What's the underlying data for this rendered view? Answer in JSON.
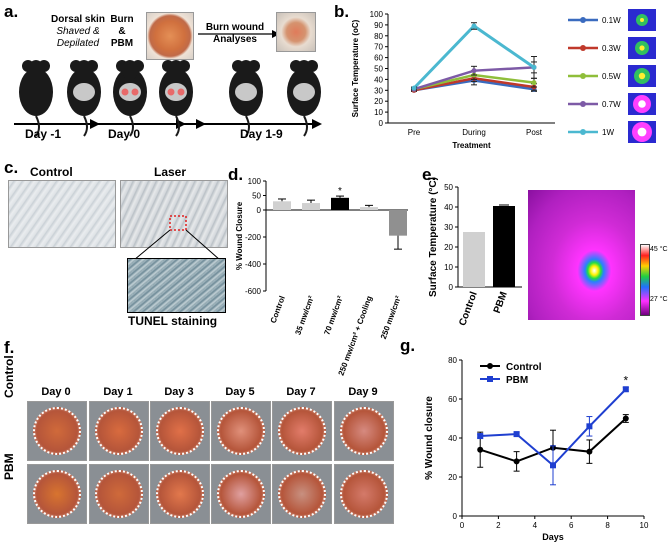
{
  "panels": {
    "a": {
      "label": "a.",
      "step1_title": "Dorsal skin",
      "step1_line2": "Shaved &",
      "step1_line3": "Depilated",
      "step2_line1": "Burn",
      "step2_line2": "&",
      "step2_line3": "PBM",
      "step3_line1": "Burn wound",
      "step3_line2": "Analyses",
      "day_minus1": "Day -1",
      "day0": "Day 0",
      "day1_9": "Day 1-9"
    },
    "b": {
      "label": "b."
    },
    "c": {
      "label": "c.",
      "control": "Control",
      "laser": "Laser",
      "tunel": "TUNEL staining"
    },
    "d": {
      "label": "d."
    },
    "e": {
      "label": "e.",
      "scale_max": "45 °C",
      "scale_min": "27 °C"
    },
    "f": {
      "label": "f.",
      "days": [
        "Day 0",
        "Day 1",
        "Day 3",
        "Day 5",
        "Day 7",
        "Day 9"
      ],
      "row_control": "Control",
      "row_pbm": "PBM"
    },
    "g": {
      "label": "g."
    }
  },
  "colors": {
    "w01": "#3a6bbf",
    "w03": "#c0392b",
    "w05": "#8fbe3a",
    "w07": "#7d5aa6",
    "w1": "#4bb8d0",
    "control_line": "#000000",
    "pbm_line": "#1f3fd0",
    "bar_gray": "#d0d0d0",
    "bar_black": "#000000",
    "bar_mid": "#909090"
  },
  "chart_data": [
    {
      "id": "b",
      "type": "line",
      "title": "",
      "xlabel": "Treatment",
      "ylabel": "Surface Temperature (oC)",
      "categories": [
        "Pre",
        "During",
        "Post"
      ],
      "ylim": [
        0,
        100
      ],
      "yticks": [
        0,
        10,
        20,
        30,
        40,
        50,
        60,
        70,
        80,
        90,
        100
      ],
      "series": [
        {
          "name": "0.1W",
          "values": [
            30,
            39,
            31
          ],
          "err": [
            1,
            4,
            2
          ]
        },
        {
          "name": "0.3W",
          "values": [
            30,
            41,
            33
          ],
          "err": [
            1,
            3,
            3
          ]
        },
        {
          "name": "0.5W",
          "values": [
            31,
            44,
            37
          ],
          "err": [
            1,
            4,
            4
          ]
        },
        {
          "name": "0.7W",
          "values": [
            31,
            48,
            51
          ],
          "err": [
            1,
            4,
            10
          ]
        },
        {
          "name": "1W",
          "values": [
            32,
            89,
            51
          ],
          "err": [
            1,
            3,
            5
          ]
        }
      ]
    },
    {
      "id": "d",
      "type": "bar",
      "ylabel": "% Wound Closure",
      "categories": [
        "Control",
        "35 mw/cm²",
        "70 mw/cm²",
        "250 mw/cm² + Cooling",
        "250 mw/cm²"
      ],
      "values": [
        30,
        24,
        42,
        10,
        -190
      ],
      "err": [
        8,
        10,
        6,
        6,
        100
      ],
      "ylim": [
        -600,
        100
      ],
      "yticks": [
        100,
        50,
        0,
        -200,
        -400,
        -600
      ],
      "annotation": "*"
    },
    {
      "id": "e",
      "type": "bar",
      "ylabel": "Surface Temperature (°C)",
      "categories": [
        "Control",
        "PBM"
      ],
      "values": [
        27.5,
        40.5
      ],
      "err": [
        0,
        0.5
      ],
      "ylim": [
        0,
        50
      ],
      "yticks": [
        0,
        10,
        20,
        30,
        40,
        50
      ]
    },
    {
      "id": "g",
      "type": "line",
      "xlabel": "Days",
      "ylabel": "% Wound closure",
      "xlim": [
        0,
        10
      ],
      "ylim": [
        0,
        80
      ],
      "xticks": [
        0,
        2,
        4,
        6,
        8,
        10
      ],
      "yticks": [
        0,
        20,
        40,
        60,
        80
      ],
      "annotation": "*",
      "series": [
        {
          "name": "Control",
          "x": [
            1,
            3,
            5,
            7,
            9
          ],
          "values": [
            34,
            28,
            35,
            33,
            50
          ],
          "err": [
            9,
            5,
            9,
            6,
            2
          ]
        },
        {
          "name": "PBM",
          "x": [
            1,
            3,
            5,
            7,
            9
          ],
          "values": [
            41,
            42,
            26,
            46,
            65
          ],
          "err": [
            1,
            1,
            10,
            5,
            1
          ]
        }
      ]
    }
  ]
}
